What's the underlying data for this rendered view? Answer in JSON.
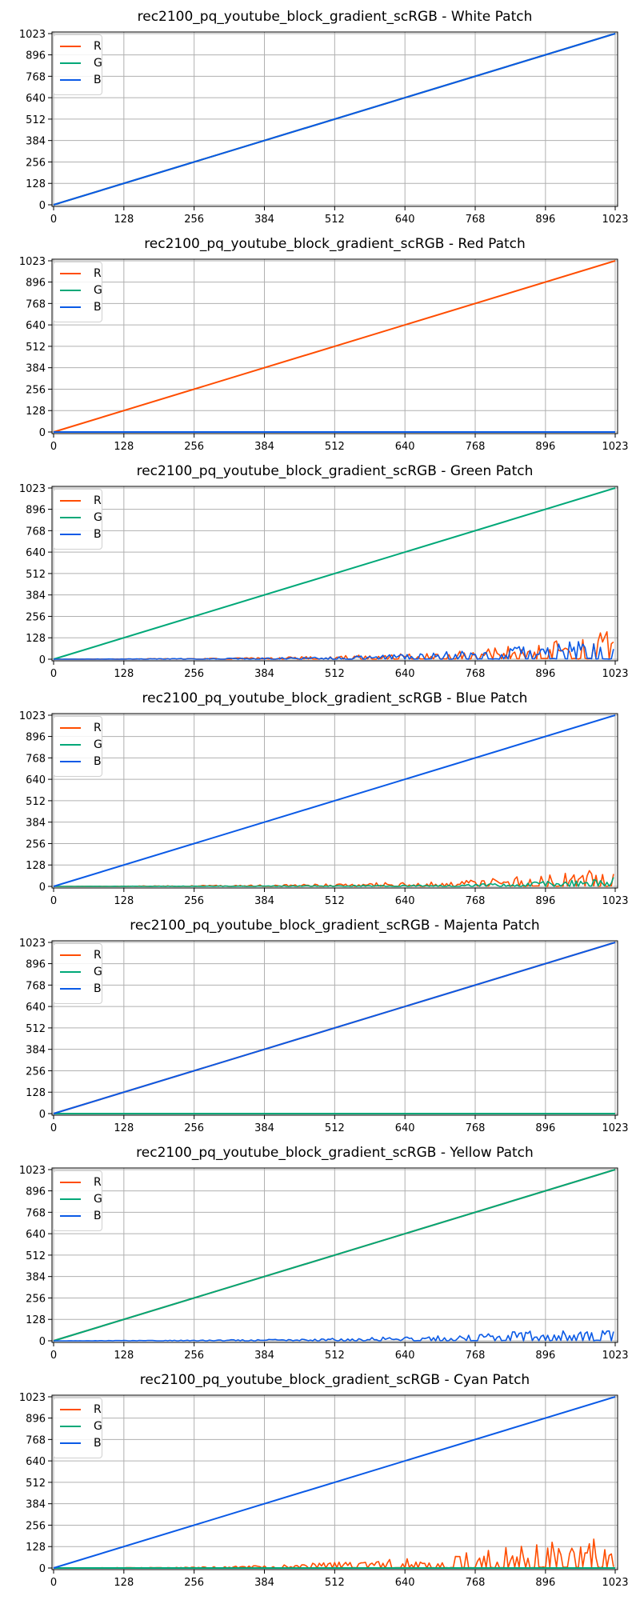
{
  "colors": {
    "R": "#ff4d00",
    "G": "#00a878",
    "B": "#0a5ae6"
  },
  "ticks": [
    0,
    128,
    256,
    384,
    512,
    640,
    768,
    896,
    1023
  ],
  "chart_data": [
    {
      "type": "line",
      "title": "rec2100_pq_youtube_block_gradient_scRGB - White Patch",
      "xlim": [
        0,
        1023
      ],
      "ylim": [
        0,
        1023
      ],
      "grid": true,
      "legend": "upper-left",
      "series": [
        {
          "name": "R",
          "color": "#ff4d00",
          "x": [
            0,
            1023
          ],
          "y": [
            0,
            1023
          ]
        },
        {
          "name": "G",
          "color": "#00a878",
          "x": [
            0,
            1023
          ],
          "y": [
            0,
            1023
          ]
        },
        {
          "name": "B",
          "color": "#0a5ae6",
          "x": [
            0,
            1023
          ],
          "y": [
            0,
            1023
          ]
        }
      ]
    },
    {
      "type": "line",
      "title": "rec2100_pq_youtube_block_gradient_scRGB - Red Patch",
      "xlim": [
        0,
        1023
      ],
      "ylim": [
        0,
        1023
      ],
      "grid": true,
      "legend": "upper-left",
      "series": [
        {
          "name": "R",
          "color": "#ff4d00",
          "x": [
            0,
            1023
          ],
          "y": [
            0,
            1023
          ]
        },
        {
          "name": "G",
          "color": "#00a878",
          "x": [
            0,
            1023
          ],
          "y": [
            0,
            0
          ]
        },
        {
          "name": "B",
          "color": "#0a5ae6",
          "x": [
            0,
            1023
          ],
          "y": [
            0,
            0
          ]
        }
      ]
    },
    {
      "type": "line",
      "title": "rec2100_pq_youtube_block_gradient_scRGB - Green Patch",
      "xlim": [
        0,
        1023
      ],
      "ylim": [
        0,
        1023
      ],
      "grid": true,
      "legend": "upper-left",
      "series": [
        {
          "name": "R",
          "color": "#ff4d00",
          "x": [
            0,
            128,
            256,
            384,
            512,
            640,
            768,
            896,
            1023
          ],
          "y": [
            0,
            2,
            5,
            10,
            20,
            35,
            60,
            100,
            180
          ]
        },
        {
          "name": "G",
          "color": "#00a878",
          "x": [
            0,
            1023
          ],
          "y": [
            0,
            1023
          ]
        },
        {
          "name": "B",
          "color": "#0a5ae6",
          "x": [
            0,
            128,
            256,
            384,
            512,
            640,
            768,
            896,
            1023
          ],
          "y": [
            0,
            2,
            4,
            8,
            15,
            30,
            55,
            90,
            130
          ]
        }
      ]
    },
    {
      "type": "line",
      "title": "rec2100_pq_youtube_block_gradient_scRGB - Blue Patch",
      "xlim": [
        0,
        1023
      ],
      "ylim": [
        0,
        1023
      ],
      "grid": true,
      "legend": "upper-left",
      "series": [
        {
          "name": "R",
          "color": "#ff4d00",
          "x": [
            0,
            128,
            256,
            384,
            512,
            640,
            768,
            896,
            1023
          ],
          "y": [
            0,
            2,
            5,
            10,
            16,
            25,
            40,
            70,
            120
          ]
        },
        {
          "name": "G",
          "color": "#00a878",
          "x": [
            0,
            128,
            256,
            384,
            512,
            640,
            768,
            896,
            1023
          ],
          "y": [
            0,
            1,
            2,
            4,
            6,
            10,
            15,
            30,
            60
          ]
        },
        {
          "name": "B",
          "color": "#0a5ae6",
          "x": [
            0,
            1023
          ],
          "y": [
            0,
            1023
          ]
        }
      ]
    },
    {
      "type": "line",
      "title": "rec2100_pq_youtube_block_gradient_scRGB - Majenta Patch",
      "xlim": [
        0,
        1023
      ],
      "ylim": [
        0,
        1023
      ],
      "grid": true,
      "legend": "upper-left",
      "series": [
        {
          "name": "R",
          "color": "#ff4d00",
          "x": [
            0,
            1023
          ],
          "y": [
            0,
            1023
          ]
        },
        {
          "name": "G",
          "color": "#00a878",
          "x": [
            0,
            1023
          ],
          "y": [
            0,
            0
          ]
        },
        {
          "name": "B",
          "color": "#0a5ae6",
          "x": [
            0,
            1023
          ],
          "y": [
            0,
            1023
          ]
        }
      ]
    },
    {
      "type": "line",
      "title": "rec2100_pq_youtube_block_gradient_scRGB - Yellow Patch",
      "xlim": [
        0,
        1023
      ],
      "ylim": [
        0,
        1023
      ],
      "grid": true,
      "legend": "upper-left",
      "series": [
        {
          "name": "R",
          "color": "#ff4d00",
          "x": [
            0,
            1023
          ],
          "y": [
            0,
            1023
          ]
        },
        {
          "name": "G",
          "color": "#00a878",
          "x": [
            0,
            1023
          ],
          "y": [
            0,
            1023
          ]
        },
        {
          "name": "B",
          "color": "#0a5ae6",
          "x": [
            0,
            128,
            256,
            384,
            512,
            640,
            768,
            896,
            1023
          ],
          "y": [
            0,
            2,
            4,
            8,
            15,
            25,
            40,
            65,
            90
          ]
        }
      ]
    },
    {
      "type": "line",
      "title": "rec2100_pq_youtube_block_gradient_scRGB - Cyan Patch",
      "xlim": [
        0,
        1023
      ],
      "ylim": [
        0,
        1023
      ],
      "grid": true,
      "legend": "upper-left",
      "series": [
        {
          "name": "R",
          "color": "#ff4d00",
          "x": [
            0,
            128,
            256,
            384,
            512,
            640,
            768,
            896,
            1023
          ],
          "y": [
            0,
            2,
            6,
            15,
            35,
            60,
            100,
            150,
            200
          ]
        },
        {
          "name": "G",
          "color": "#00a878",
          "x": [
            0,
            1023
          ],
          "y": [
            0,
            0
          ]
        },
        {
          "name": "B",
          "color": "#0a5ae6",
          "x": [
            0,
            1023
          ],
          "y": [
            0,
            1023
          ]
        }
      ]
    }
  ]
}
